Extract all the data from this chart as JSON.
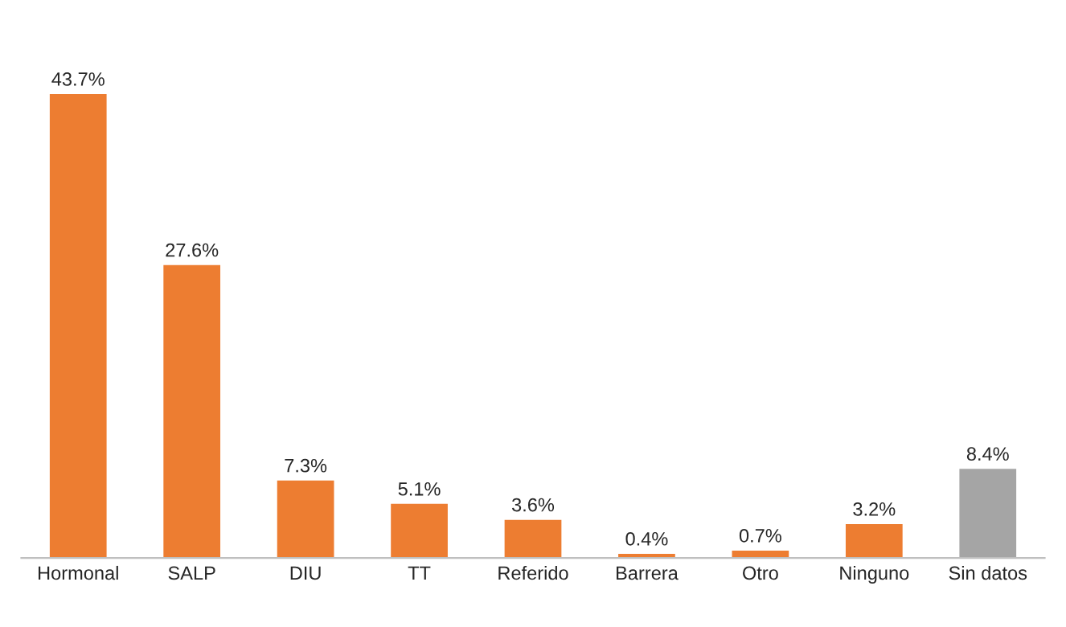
{
  "chart_data": {
    "type": "bar",
    "categories": [
      "Hormonal",
      "SALP",
      "DIU",
      "TT",
      "Referido",
      "Barrera",
      "Otro",
      "Ninguno",
      "Sin datos"
    ],
    "values": [
      43.7,
      27.6,
      7.3,
      5.1,
      3.6,
      0.4,
      0.7,
      3.2,
      8.4
    ],
    "colors": [
      "#ed7d31",
      "#ed7d31",
      "#ed7d31",
      "#ed7d31",
      "#ed7d31",
      "#ed7d31",
      "#ed7d31",
      "#ed7d31",
      "#a5a5a5"
    ],
    "value_labels": [
      "43.7%",
      "27.6%",
      "7.3%",
      "5.1%",
      "3.6%",
      "0.4%",
      "0.7%",
      "3.2%",
      "8.4%"
    ],
    "grid": false,
    "legend": false
  }
}
